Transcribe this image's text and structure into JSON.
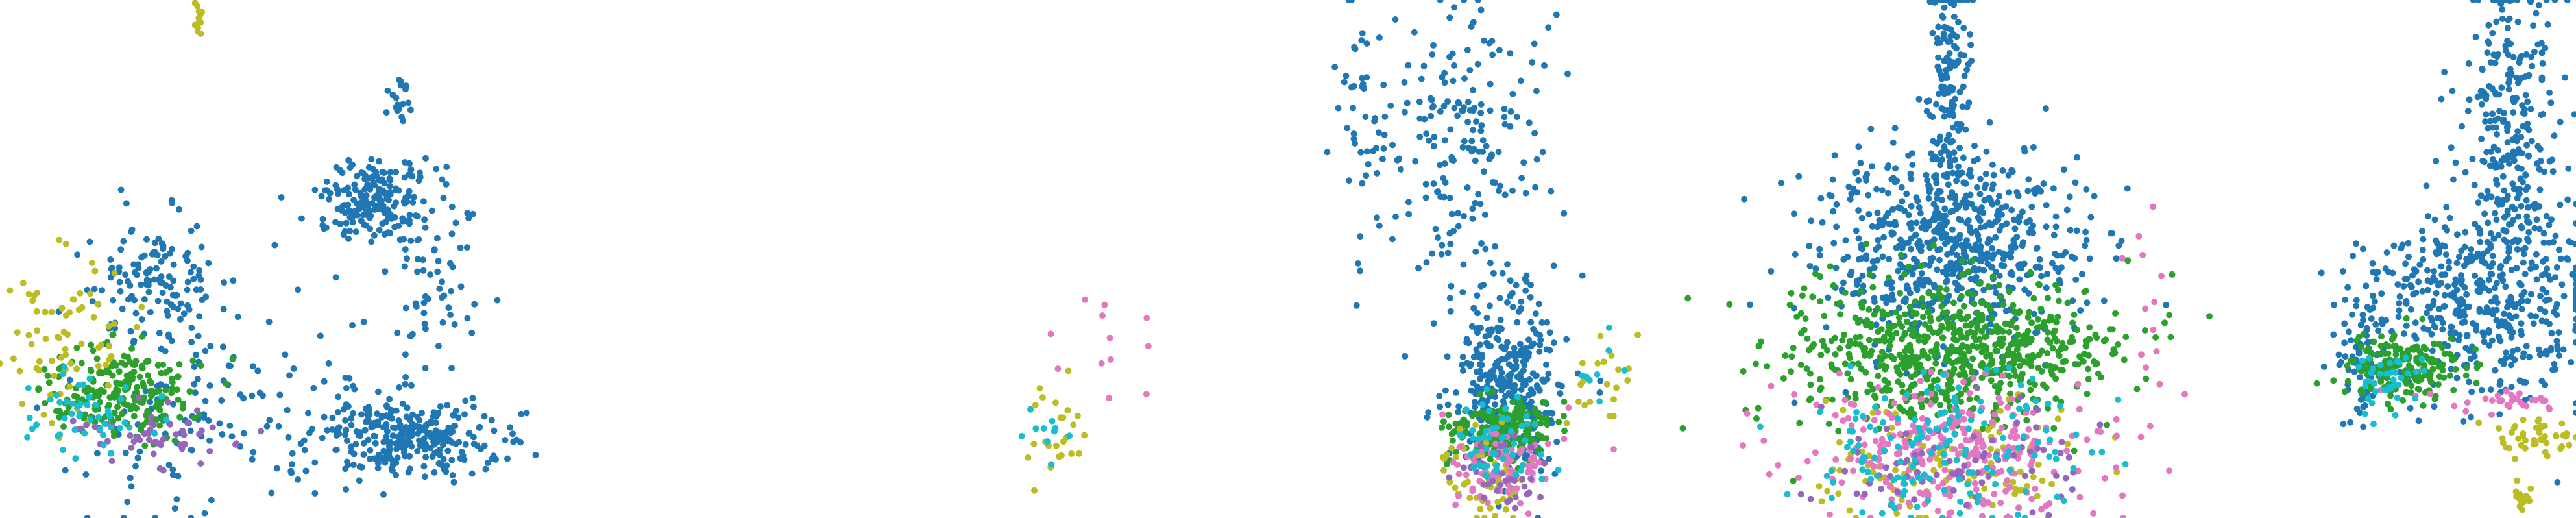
{
  "chart_data": {
    "type": "scatter",
    "title": "",
    "xlabel": "",
    "ylabel": "",
    "grid": false,
    "legend": "none",
    "xlim": [
      0,
      1570
    ],
    "ylim": [
      0,
      316
    ],
    "series": [
      {
        "color": "#1f77b4",
        "clusters": [
          {
            "cx": 230,
            "cy": 122,
            "sx": 18,
            "sy": 12,
            "n": 200
          },
          {
            "cx": 245,
            "cy": 266,
            "sx": 28,
            "sy": 12,
            "n": 300
          },
          {
            "cx": 95,
            "cy": 170,
            "sx": 18,
            "sy": 18,
            "n": 120
          },
          {
            "cx": 120,
            "cy": 240,
            "sx": 45,
            "sy": 35,
            "n": 150
          },
          {
            "cx": 265,
            "cy": 175,
            "sx": 18,
            "sy": 28,
            "n": 60
          },
          {
            "cx": 245,
            "cy": 60,
            "sx": 5,
            "sy": 10,
            "n": 20
          },
          {
            "cx": 890,
            "cy": 90,
            "sx": 30,
            "sy": 45,
            "n": 200
          },
          {
            "cx": 830,
            "cy": 60,
            "sx": 6,
            "sy": 40,
            "n": 30
          },
          {
            "cx": 918,
            "cy": 230,
            "sx": 16,
            "sy": 28,
            "n": 350
          },
          {
            "cx": 1188,
            "cy": 50,
            "sx": 6,
            "sy": 40,
            "n": 160
          },
          {
            "cx": 1188,
            "cy": 150,
            "sx": 40,
            "sy": 30,
            "n": 650
          },
          {
            "cx": 1530,
            "cy": 80,
            "sx": 15,
            "sy": 50,
            "n": 280
          },
          {
            "cx": 1510,
            "cy": 185,
            "sx": 35,
            "sy": 28,
            "n": 450
          },
          {
            "cx": 1440,
            "cy": 220,
            "sx": 8,
            "sy": 20,
            "n": 60
          }
        ]
      },
      {
        "color": "#2ca02c",
        "clusters": [
          {
            "cx": 75,
            "cy": 238,
            "sx": 22,
            "sy": 14,
            "n": 220
          },
          {
            "cx": 1188,
            "cy": 215,
            "sx": 48,
            "sy": 22,
            "n": 700
          },
          {
            "cx": 915,
            "cy": 262,
            "sx": 16,
            "sy": 10,
            "n": 200
          },
          {
            "cx": 1465,
            "cy": 225,
            "sx": 18,
            "sy": 10,
            "n": 180
          }
        ]
      },
      {
        "color": "#bcbd22",
        "clusters": [
          {
            "cx": 40,
            "cy": 205,
            "sx": 18,
            "sy": 30,
            "n": 70
          },
          {
            "cx": 121,
            "cy": 12,
            "sx": 1.5,
            "sy": 8,
            "n": 12
          },
          {
            "cx": 645,
            "cy": 270,
            "sx": 10,
            "sy": 14,
            "n": 25
          },
          {
            "cx": 975,
            "cy": 225,
            "sx": 10,
            "sy": 15,
            "n": 20
          },
          {
            "cx": 1545,
            "cy": 265,
            "sx": 12,
            "sy": 8,
            "n": 45
          },
          {
            "cx": 1538,
            "cy": 305,
            "sx": 3,
            "sy": 5,
            "n": 15
          },
          {
            "cx": 910,
            "cy": 290,
            "sx": 15,
            "sy": 12,
            "n": 60
          },
          {
            "cx": 1188,
            "cy": 280,
            "sx": 45,
            "sy": 20,
            "n": 120
          }
        ]
      },
      {
        "color": "#e377c2",
        "clusters": [
          {
            "cx": 1188,
            "cy": 275,
            "sx": 45,
            "sy": 20,
            "n": 280
          },
          {
            "cx": 915,
            "cy": 285,
            "sx": 16,
            "sy": 12,
            "n": 80
          },
          {
            "cx": 690,
            "cy": 185,
            "sx": 20,
            "sy": 25,
            "n": 12
          },
          {
            "cx": 1310,
            "cy": 190,
            "sx": 6,
            "sy": 35,
            "n": 12
          },
          {
            "cx": 1520,
            "cy": 245,
            "sx": 25,
            "sy": 6,
            "n": 30
          }
        ]
      },
      {
        "color": "#9467bd",
        "clusters": [
          {
            "cx": 95,
            "cy": 265,
            "sx": 25,
            "sy": 8,
            "n": 50
          },
          {
            "cx": 1188,
            "cy": 280,
            "sx": 40,
            "sy": 18,
            "n": 80
          },
          {
            "cx": 915,
            "cy": 290,
            "sx": 14,
            "sy": 10,
            "n": 40
          }
        ]
      },
      {
        "color": "#17becf",
        "clusters": [
          {
            "cx": 55,
            "cy": 250,
            "sx": 18,
            "sy": 12,
            "n": 50
          },
          {
            "cx": 1188,
            "cy": 275,
            "sx": 45,
            "sy": 22,
            "n": 150
          },
          {
            "cx": 915,
            "cy": 270,
            "sx": 14,
            "sy": 12,
            "n": 50
          },
          {
            "cx": 975,
            "cy": 225,
            "sx": 8,
            "sy": 10,
            "n": 8
          },
          {
            "cx": 640,
            "cy": 265,
            "sx": 8,
            "sy": 10,
            "n": 10
          },
          {
            "cx": 1455,
            "cy": 235,
            "sx": 10,
            "sy": 10,
            "n": 40
          }
        ]
      }
    ]
  }
}
